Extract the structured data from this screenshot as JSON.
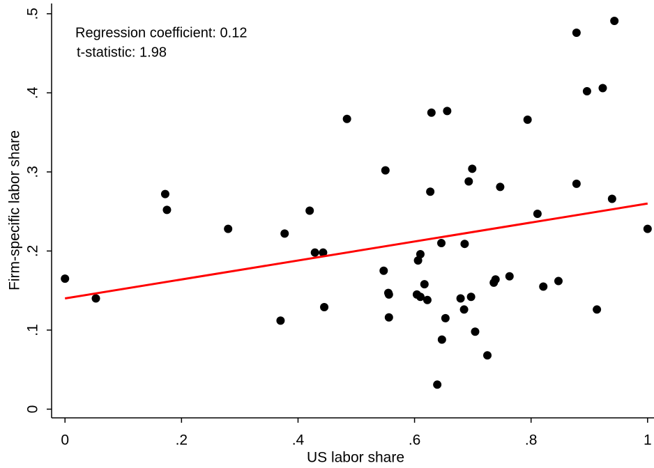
{
  "chart_data": {
    "type": "scatter",
    "annotations": [
      "Regression coefficient: 0.12",
      "t-statistic: 1.98"
    ],
    "x_label": "US labor share",
    "y_label": "Firm-specific labor share",
    "xlim": [
      -0.023,
      1.011
    ],
    "ylim": [
      -0.011,
      0.513
    ],
    "xticks": [
      0,
      {
        "value": 0.2,
        "label": ".2"
      },
      {
        "value": 0.4,
        "label": ".4"
      },
      {
        "value": 0.6,
        "label": ".6"
      },
      {
        "value": 0.8,
        "label": ".8"
      },
      1
    ],
    "yticks": [
      0,
      {
        "value": 0.1,
        "label": ".1"
      },
      {
        "value": 0.2,
        "label": ".2"
      },
      {
        "value": 0.3,
        "label": ".3"
      },
      {
        "value": 0.4,
        "label": ".4"
      },
      {
        "value": 0.5,
        "label": ".5"
      }
    ],
    "color": "#000000",
    "x": [
      0,
      0.053,
      0.172,
      0.175,
      0.28,
      0.37,
      0.377,
      0.42,
      0.429,
      0.443,
      0.445,
      0.484,
      0.547,
      0.55,
      0.555,
      0.556,
      0.556,
      0.604,
      0.606,
      0.61,
      0.61,
      0.617,
      0.622,
      0.627,
      0.629,
      0.639,
      0.646,
      0.647,
      0.653,
      0.656,
      0.679,
      0.685,
      0.686,
      0.693,
      0.697,
      0.699,
      0.704,
      0.725,
      0.736,
      0.739,
      0.747,
      0.763,
      0.794,
      0.811,
      0.821,
      0.847,
      0.878,
      0.878,
      0.896,
      0.913,
      0.923,
      0.939,
      0.943,
      1.0
    ],
    "values": [
      0.165,
      0.14,
      0.272,
      0.252,
      0.228,
      0.112,
      0.222,
      0.251,
      0.198,
      0.198,
      0.129,
      0.367,
      0.175,
      0.302,
      0.147,
      0.145,
      0.116,
      0.145,
      0.188,
      0.196,
      0.142,
      0.158,
      0.138,
      0.275,
      0.375,
      0.031,
      0.21,
      0.088,
      0.115,
      0.377,
      0.14,
      0.126,
      0.209,
      0.288,
      0.142,
      0.304,
      0.098,
      0.068,
      0.16,
      0.164,
      0.281,
      0.168,
      0.366,
      0.247,
      0.155,
      0.162,
      0.476,
      0.285,
      0.402,
      0.126,
      0.406,
      0.266,
      0.491,
      0.228
    ],
    "fit": {
      "x": [
        0,
        1
      ],
      "values": [
        0.14,
        0.26
      ],
      "color": "#ff0000"
    }
  }
}
